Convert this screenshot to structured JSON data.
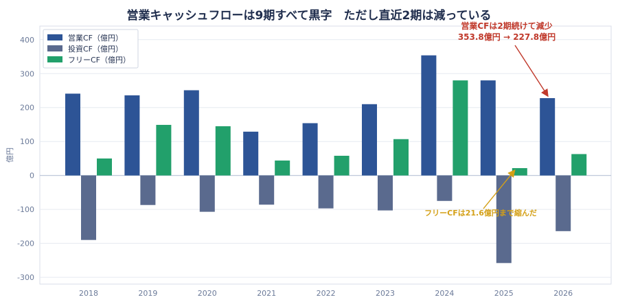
{
  "chart_data": {
    "type": "bar",
    "title": "営業キャッシュフローは9期すべて黒字　ただし直近2期は減っている",
    "xlabel": "",
    "ylabel": "億円",
    "categories": [
      "2018",
      "2019",
      "2020",
      "2021",
      "2022",
      "2023",
      "2024",
      "2025",
      "2026"
    ],
    "ylim": [
      -320,
      440
    ],
    "yticks": [
      -300,
      -200,
      -100,
      0,
      100,
      200,
      300,
      400
    ],
    "grid": "horizontal",
    "legend_position": "top-left",
    "series": [
      {
        "name": "営業CF（億円）",
        "color": "#2d5496",
        "values": [
          241,
          236,
          251,
          129,
          154,
          210,
          353.8,
          280,
          227.8
        ]
      },
      {
        "name": "投資CF（億円）",
        "color": "#5a6a8e",
        "values": [
          -190,
          -87,
          -107,
          -86,
          -97,
          -103,
          -75,
          -258,
          -164
        ]
      },
      {
        "name": "フリーCF（億円）",
        "color": "#22a06b",
        "values": [
          50,
          149,
          145,
          44,
          58,
          107,
          280,
          21.6,
          63
        ]
      }
    ],
    "annotations": [
      {
        "text_lines": [
          "営業CFは2期続けて減少",
          "353.8億円 → 227.8億円"
        ],
        "color": "#c0392b",
        "target": {
          "x": "2026",
          "series": 0,
          "y": 227.8
        },
        "label_y": 440
      },
      {
        "text": "フリーCFは21.6億円まで縮んだ",
        "color": "#d4a017",
        "target": {
          "x": "2025",
          "series": 2,
          "y": 21.6
        },
        "label_y": -110
      }
    ]
  }
}
